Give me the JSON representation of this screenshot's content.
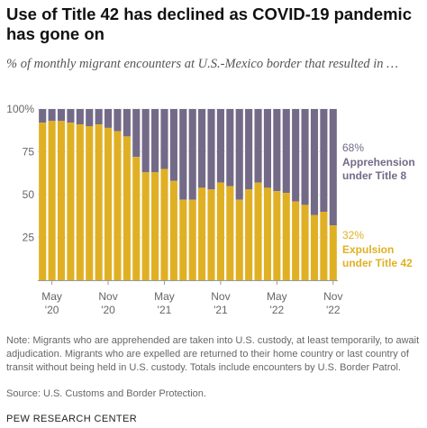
{
  "title": "Use of Title 42 has declined as COVID-19 pandemic has gone on",
  "subtitle": "% of monthly migrant encounters at U.S.-Mexico border that resulted in …",
  "note": "Note: Migrants who are apprehended are taken into U.S. custody, at least temporarily, to await adjudication. Migrants who are expelled are returned to their home country or last country of transit without being held in U.S. custody. Totals include encounters by U.S. Border Patrol.",
  "source": "Source: U.S. Customs and Border Protection.",
  "brand": "PEW RESEARCH CENTER",
  "colors": {
    "expulsion": "#E0B024",
    "apprehension": "#736A88",
    "axis": "#999999",
    "grid": "#d8d8d8"
  },
  "chart_data": {
    "type": "bar",
    "stacked": true,
    "categories": [
      "Apr '20",
      "May '20",
      "Jun '20",
      "Jul '20",
      "Aug '20",
      "Sep '20",
      "Oct '20",
      "Nov '20",
      "Dec '20",
      "Jan '21",
      "Feb '21",
      "Mar '21",
      "Apr '21",
      "May '21",
      "Jun '21",
      "Jul '21",
      "Aug '21",
      "Sep '21",
      "Oct '21",
      "Nov '21",
      "Dec '21",
      "Jan '22",
      "Feb '22",
      "Mar '22",
      "Apr '22",
      "May '22",
      "Jun '22",
      "Jul '22",
      "Aug '22",
      "Sep '22",
      "Oct '22",
      "Nov '22"
    ],
    "series": [
      {
        "name": "Expulsion under Title 42",
        "values": [
          92,
          93,
          93,
          92,
          91,
          90,
          91,
          89,
          87,
          84,
          72,
          63,
          63,
          65,
          58,
          47,
          47,
          54,
          53,
          57,
          55,
          47,
          53,
          57,
          54,
          52,
          51,
          46,
          44,
          38,
          40,
          32
        ]
      },
      {
        "name": "Apprehension under Title 8",
        "values": [
          8,
          7,
          7,
          8,
          9,
          10,
          9,
          11,
          13,
          16,
          28,
          37,
          37,
          35,
          42,
          53,
          53,
          46,
          47,
          43,
          45,
          53,
          47,
          43,
          46,
          48,
          49,
          54,
          56,
          62,
          60,
          68
        ]
      }
    ],
    "x_tick_labels": [
      {
        "category": "May '20",
        "month": "May",
        "year": "'20"
      },
      {
        "category": "Nov '20",
        "month": "Nov",
        "year": "'20"
      },
      {
        "category": "May '21",
        "month": "May",
        "year": "'21"
      },
      {
        "category": "Nov '21",
        "month": "Nov",
        "year": "'21"
      },
      {
        "category": "May '22",
        "month": "May",
        "year": "'22"
      },
      {
        "category": "Nov '22",
        "month": "Nov",
        "year": "'22"
      }
    ],
    "y_ticks": [
      "25",
      "50",
      "75",
      "100%"
    ],
    "y_tick_values": [
      25,
      50,
      75,
      100
    ],
    "ylim": [
      0,
      100
    ],
    "end_labels": {
      "apprehension": {
        "value": "68%",
        "line1": "Apprehension",
        "line2": "under Title 8"
      },
      "expulsion": {
        "value": "32%",
        "line1": "Expulsion",
        "line2": "under Title 42"
      }
    }
  }
}
